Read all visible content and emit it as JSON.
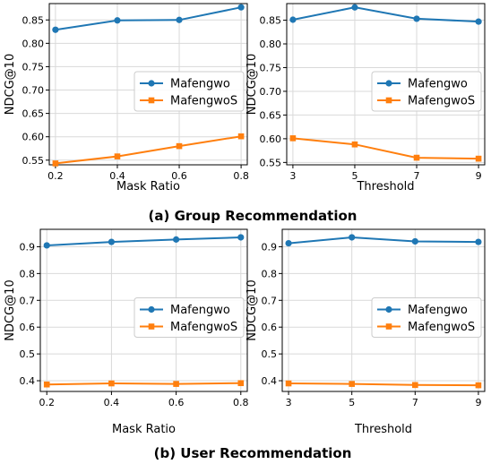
{
  "captions": {
    "top": "(a) Group Recommendation",
    "bottom": "(b) User Recommendation"
  },
  "colors": {
    "Mafengwo": "#1f77b4",
    "MafengwoS": "#ff7f0e"
  },
  "chart_data": [
    {
      "type": "line",
      "title": "",
      "xlabel": "Mask Ratio",
      "ylabel": "NDCG@10",
      "x": [
        0.2,
        0.4,
        0.6,
        0.8
      ],
      "xticks": [
        "0.2",
        "0.4",
        "0.6",
        "0.8"
      ],
      "xlim": [
        0.18,
        0.82
      ],
      "ylim": [
        0.54,
        0.885
      ],
      "yticks": [
        "0.55",
        "0.60",
        "0.65",
        "0.70",
        "0.75",
        "0.80",
        "0.85"
      ],
      "grid": true,
      "legend": "center-right",
      "series": [
        {
          "name": "Mafengwo",
          "marker": "circle",
          "values": [
            0.829,
            0.849,
            0.85,
            0.877
          ]
        },
        {
          "name": "MafengwoS",
          "marker": "square",
          "values": [
            0.543,
            0.558,
            0.58,
            0.601
          ]
        }
      ]
    },
    {
      "type": "line",
      "title": "",
      "xlabel": "Threshold",
      "ylabel": "NDCG@10",
      "x": [
        3,
        5,
        7,
        9
      ],
      "xticks": [
        "3",
        "5",
        "7",
        "9"
      ],
      "xlim": [
        2.8,
        9.2
      ],
      "ylim": [
        0.545,
        0.885
      ],
      "yticks": [
        "0.55",
        "0.60",
        "0.65",
        "0.70",
        "0.75",
        "0.80",
        "0.85"
      ],
      "grid": true,
      "legend": "center-right",
      "series": [
        {
          "name": "Mafengwo",
          "marker": "circle",
          "values": [
            0.851,
            0.877,
            0.853,
            0.847
          ]
        },
        {
          "name": "MafengwoS",
          "marker": "square",
          "values": [
            0.601,
            0.588,
            0.56,
            0.558
          ]
        }
      ]
    },
    {
      "type": "line",
      "title": "",
      "xlabel": "Mask Ratio",
      "ylabel": "NDCG@10",
      "x": [
        0.2,
        0.4,
        0.6,
        0.8
      ],
      "xticks": [
        "0.2",
        "0.4",
        "0.6",
        "0.8"
      ],
      "xlim": [
        0.18,
        0.82
      ],
      "ylim": [
        0.36,
        0.965
      ],
      "yticks": [
        "0.4",
        "0.5",
        "0.6",
        "0.7",
        "0.8",
        "0.9"
      ],
      "grid": true,
      "legend": "center-right",
      "series": [
        {
          "name": "Mafengwo",
          "marker": "circle",
          "values": [
            0.905,
            0.918,
            0.927,
            0.935
          ]
        },
        {
          "name": "MafengwoS",
          "marker": "square",
          "values": [
            0.386,
            0.39,
            0.388,
            0.391
          ]
        }
      ]
    },
    {
      "type": "line",
      "title": "",
      "xlabel": "Threshold",
      "ylabel": "NDCG@10",
      "x": [
        3,
        5,
        7,
        9
      ],
      "xticks": [
        "3",
        "5",
        "7",
        "9"
      ],
      "xlim": [
        2.8,
        9.2
      ],
      "ylim": [
        0.36,
        0.965
      ],
      "yticks": [
        "0.4",
        "0.5",
        "0.6",
        "0.7",
        "0.8",
        "0.9"
      ],
      "grid": true,
      "legend": "center-right",
      "series": [
        {
          "name": "Mafengwo",
          "marker": "circle",
          "values": [
            0.913,
            0.935,
            0.92,
            0.918
          ]
        },
        {
          "name": "MafengwoS",
          "marker": "square",
          "values": [
            0.39,
            0.388,
            0.384,
            0.383
          ]
        }
      ]
    }
  ]
}
